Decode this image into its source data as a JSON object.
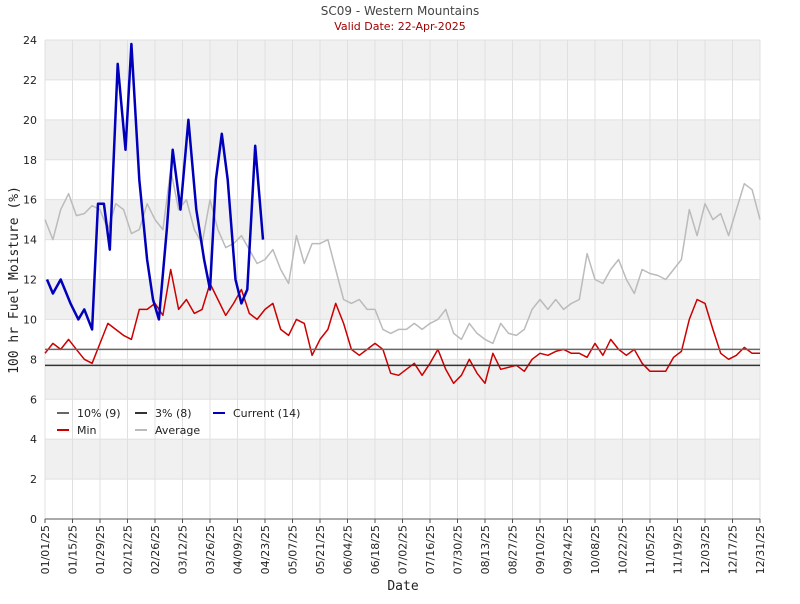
{
  "chart_data": {
    "type": "line",
    "title": "SC09 - Western Mountains",
    "subtitle": "Valid Date: 22-Apr-2025",
    "xlabel": "Date",
    "ylabel": "100 hr Fuel Moisture (%)",
    "xlim": [
      0,
      364
    ],
    "ylim": [
      0,
      24
    ],
    "yticks": [
      0,
      2,
      4,
      6,
      8,
      10,
      12,
      14,
      16,
      18,
      20,
      22,
      24
    ],
    "xticks": [
      {
        "value": 0,
        "label": "01/01/25"
      },
      {
        "value": 14,
        "label": "01/15/25"
      },
      {
        "value": 28,
        "label": "01/29/25"
      },
      {
        "value": 42,
        "label": "02/12/25"
      },
      {
        "value": 56,
        "label": "02/26/25"
      },
      {
        "value": 70,
        "label": "03/12/25"
      },
      {
        "value": 84,
        "label": "03/26/25"
      },
      {
        "value": 98,
        "label": "04/09/25"
      },
      {
        "value": 112,
        "label": "04/23/25"
      },
      {
        "value": 126,
        "label": "05/07/25"
      },
      {
        "value": 140,
        "label": "05/21/25"
      },
      {
        "value": 154,
        "label": "06/04/25"
      },
      {
        "value": 168,
        "label": "06/18/25"
      },
      {
        "value": 182,
        "label": "07/02/25"
      },
      {
        "value": 196,
        "label": "07/16/25"
      },
      {
        "value": 210,
        "label": "07/30/25"
      },
      {
        "value": 224,
        "label": "08/13/25"
      },
      {
        "value": 238,
        "label": "08/27/25"
      },
      {
        "value": 252,
        "label": "09/10/25"
      },
      {
        "value": 266,
        "label": "09/24/25"
      },
      {
        "value": 280,
        "label": "10/08/25"
      },
      {
        "value": 294,
        "label": "10/22/25"
      },
      {
        "value": 308,
        "label": "11/05/25"
      },
      {
        "value": 322,
        "label": "11/19/25"
      },
      {
        "value": 336,
        "label": "12/03/25"
      },
      {
        "value": 350,
        "label": "12/17/25"
      },
      {
        "value": 364,
        "label": "12/31/25"
      }
    ],
    "grid": true,
    "x": [
      0,
      4,
      8,
      12,
      16,
      20,
      24,
      28,
      32,
      36,
      40,
      44,
      48,
      52,
      56,
      60,
      64,
      68,
      72,
      76,
      80,
      84,
      88,
      92,
      96,
      100,
      104,
      108,
      112,
      116,
      120,
      124,
      128,
      132,
      136,
      140,
      144,
      148,
      152,
      156,
      160,
      164,
      168,
      172,
      176,
      180,
      184,
      188,
      192,
      196,
      200,
      204,
      208,
      212,
      216,
      220,
      224,
      228,
      232,
      236,
      240,
      244,
      248,
      252,
      256,
      260,
      264,
      268,
      272,
      276,
      280,
      284,
      288,
      292,
      296,
      300,
      304,
      308,
      312,
      316,
      320,
      324,
      328,
      332,
      336,
      340,
      344,
      348,
      352,
      356,
      360,
      364
    ],
    "series": [
      {
        "name": "10% (9)",
        "color": "#666666",
        "y": 8.5
      },
      {
        "name": "3% (8)",
        "color": "#333333",
        "y": 7.7
      },
      {
        "name": "Current (14)",
        "color": "#0000bb",
        "x": [
          1,
          4,
          8,
          13,
          17,
          20,
          24,
          27,
          30,
          33,
          37,
          41,
          44,
          48,
          52,
          55,
          58,
          62,
          65,
          69,
          73,
          77,
          81,
          84,
          87,
          90,
          93,
          97,
          100,
          103,
          107,
          111
        ],
        "values": [
          12,
          11.3,
          12,
          10.8,
          10,
          10.5,
          9.5,
          15.8,
          15.8,
          13.5,
          22.8,
          18.5,
          23.8,
          17,
          13,
          11,
          10,
          14.5,
          18.5,
          15.5,
          20,
          15.5,
          13,
          11.5,
          17,
          19.3,
          17,
          12,
          10.8,
          11.5,
          18.7,
          14
        ]
      },
      {
        "name": "Min",
        "color": "#cc0000",
        "values": [
          8.3,
          8.8,
          8.5,
          9,
          8.5,
          8,
          7.8,
          8.8,
          9.8,
          9.5,
          9.2,
          9,
          10.5,
          10.5,
          10.8,
          10.2,
          12.5,
          10.5,
          11,
          10.3,
          10.5,
          11.8,
          11,
          10.2,
          10.8,
          11.5,
          10.3,
          10,
          10.5,
          10.8,
          9.5,
          9.2,
          10,
          9.8,
          8.2,
          9,
          9.5,
          10.8,
          9.8,
          8.5,
          8.2,
          8.5,
          8.8,
          8.5,
          7.3,
          7.2,
          7.5,
          7.8,
          7.2,
          7.8,
          8.5,
          7.5,
          6.8,
          7.2,
          8,
          7.3,
          6.8,
          8.3,
          7.5,
          7.6,
          7.7,
          7.4,
          8,
          8.3,
          8.2,
          8.4,
          8.5,
          8.3,
          8.3,
          8.1,
          8.8,
          8.2,
          9,
          8.5,
          8.2,
          8.5,
          7.8,
          7.4,
          7.4,
          7.4,
          8.1,
          8.4,
          10,
          11,
          10.8,
          9.5,
          8.3,
          8,
          8.2,
          8.6,
          8.3,
          8.3
        ]
      },
      {
        "name": "Average",
        "color": "#bbbbbb",
        "values": [
          15,
          14,
          15.5,
          16.3,
          15.2,
          15.3,
          15.7,
          15.5,
          14.5,
          15.8,
          15.5,
          14.3,
          14.5,
          15.8,
          15,
          14.5,
          17.5,
          15.5,
          16,
          14.5,
          13.8,
          16,
          14.5,
          13.6,
          13.8,
          14.2,
          13.5,
          12.8,
          13,
          13.5,
          12.5,
          11.8,
          14.2,
          12.8,
          13.8,
          13.8,
          14,
          12.5,
          11,
          10.8,
          11,
          10.5,
          10.5,
          9.5,
          9.3,
          9.5,
          9.5,
          9.8,
          9.5,
          9.8,
          10,
          10.5,
          9.3,
          9,
          9.8,
          9.3,
          9,
          8.8,
          9.8,
          9.3,
          9.2,
          9.5,
          10.5,
          11,
          10.5,
          11,
          10.5,
          10.8,
          11,
          13.3,
          12,
          11.8,
          12.5,
          13,
          12,
          11.3,
          12.5,
          12.3,
          12.2,
          12,
          12.5,
          13,
          15.5,
          14.2,
          15.8,
          15,
          15.3,
          14.2,
          15.5,
          16.8,
          16.5,
          15
        ]
      }
    ]
  }
}
